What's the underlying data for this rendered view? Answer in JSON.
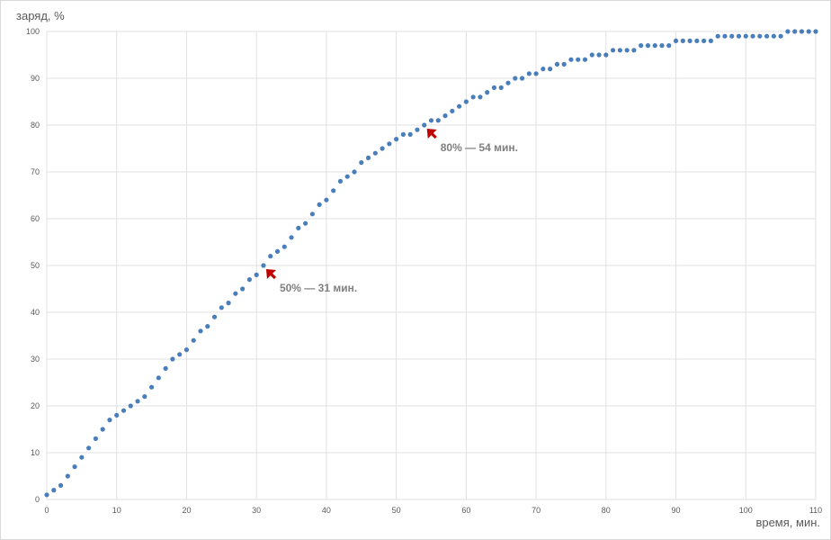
{
  "chart_data": {
    "type": "scatter",
    "ylabel": "заряд, %",
    "xlabel": "время, мин.",
    "xlim": [
      0,
      110
    ],
    "ylim": [
      0,
      100
    ],
    "x_ticks": [
      0,
      10,
      20,
      30,
      40,
      50,
      60,
      70,
      80,
      90,
      100,
      110
    ],
    "y_ticks": [
      0,
      10,
      20,
      30,
      40,
      50,
      60,
      70,
      80,
      90,
      100
    ],
    "grid": true,
    "legend": "none",
    "colors": {
      "points": "#4a7ebb",
      "grid": "#e0e0e0",
      "annotation_arrow": "#c00000",
      "annotation_text": "#7f7f7f"
    },
    "series": [
      {
        "x": [
          0,
          1,
          2,
          3,
          4,
          5,
          6,
          7,
          8,
          9,
          10,
          11,
          12,
          13,
          14,
          15,
          16,
          17,
          18,
          19,
          20,
          21,
          22,
          23,
          24,
          25,
          26,
          27,
          28,
          29,
          30,
          31,
          32,
          33,
          34,
          35,
          36,
          37,
          38,
          39,
          40,
          41,
          42,
          43,
          44,
          45,
          46,
          47,
          48,
          49,
          50,
          51,
          52,
          53,
          54,
          55,
          56,
          57,
          58,
          59,
          60,
          61,
          62,
          63,
          64,
          65,
          66,
          67,
          68,
          69,
          70,
          71,
          72,
          73,
          74,
          75,
          76,
          77,
          78,
          79,
          80,
          81,
          82,
          83,
          84,
          85,
          86,
          87,
          88,
          89,
          90,
          91,
          92,
          93,
          94,
          95,
          96,
          97,
          98,
          99,
          100,
          101,
          102,
          103,
          104,
          105,
          106,
          107,
          108,
          109,
          110
        ],
        "y": [
          1,
          2,
          3,
          5,
          7,
          9,
          11,
          13,
          15,
          17,
          18,
          19,
          20,
          21,
          22,
          24,
          26,
          28,
          30,
          31,
          32,
          34,
          36,
          37,
          39,
          41,
          42,
          44,
          45,
          47,
          48,
          50,
          52,
          53,
          54,
          56,
          58,
          59,
          61,
          63,
          64,
          66,
          68,
          69,
          70,
          72,
          73,
          74,
          75,
          76,
          77,
          78,
          78,
          79,
          80,
          81,
          81,
          82,
          83,
          84,
          85,
          86,
          86,
          87,
          88,
          88,
          89,
          90,
          90,
          91,
          91,
          92,
          92,
          93,
          93,
          94,
          94,
          94,
          95,
          95,
          95,
          96,
          96,
          96,
          96,
          97,
          97,
          97,
          97,
          97,
          98,
          98,
          98,
          98,
          98,
          98,
          99,
          99,
          99,
          99,
          99,
          99,
          99,
          99,
          99,
          99,
          100,
          100,
          100,
          100,
          100
        ]
      }
    ],
    "annotations": [
      {
        "text": "50% — 31 мин.",
        "x": 31,
        "y": 50
      },
      {
        "text": "80% — 54 мин.",
        "x": 54,
        "y": 80
      }
    ]
  }
}
